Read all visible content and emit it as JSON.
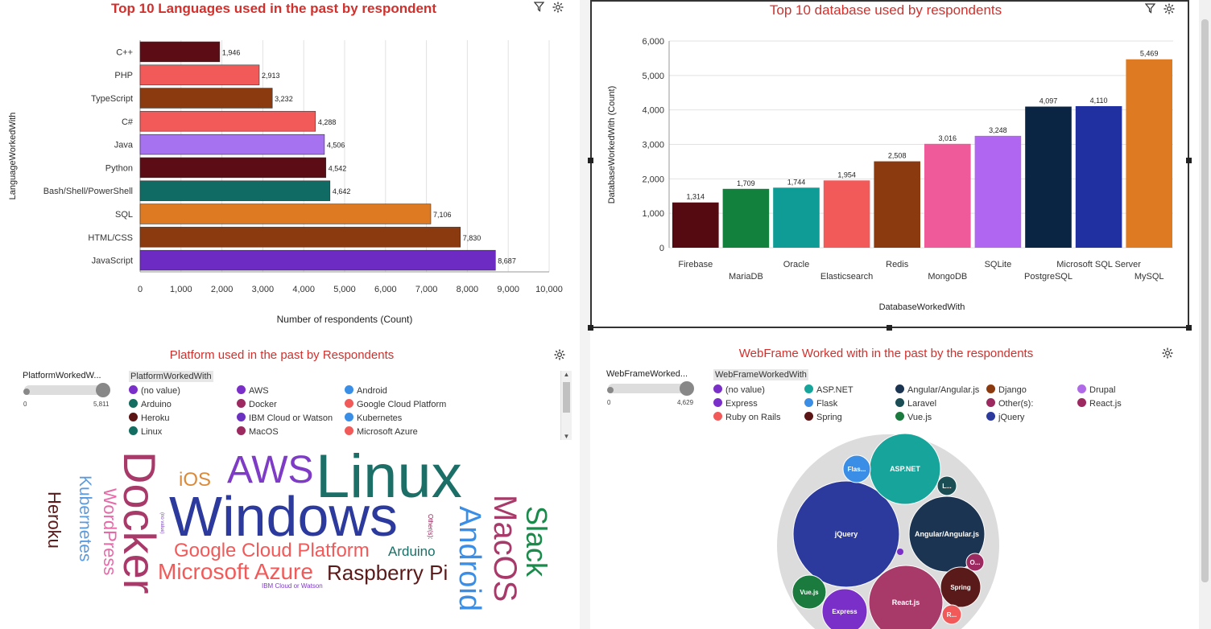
{
  "panels": {
    "languages": {
      "title": "Top 10 Languages used in the past by respondent",
      "icons": [
        "filter-icon",
        "settings-icon"
      ]
    },
    "databases": {
      "title": "Top 10 database used by respondents",
      "icons": [
        "filter-icon",
        "settings-icon"
      ]
    },
    "platform": {
      "title": "Platform used in the past by Respondents",
      "slider_label": "PlatformWorkedW...",
      "slider_min": "0",
      "slider_max": "5,811",
      "legend_title": "PlatformWorkedWith",
      "legend": [
        {
          "label": "(no value)",
          "color": "#7b2fc9"
        },
        {
          "label": "AWS",
          "color": "#7b2fc9"
        },
        {
          "label": "Android",
          "color": "#3a8ee6"
        },
        {
          "label": "Arduino",
          "color": "#136d60"
        },
        {
          "label": "Docker",
          "color": "#9c2a60"
        },
        {
          "label": "Google Cloud Platform",
          "color": "#f25a5a"
        },
        {
          "label": "Heroku",
          "color": "#5b1515"
        },
        {
          "label": "IBM Cloud or Watson",
          "color": "#6b32c2"
        },
        {
          "label": "Kubernetes",
          "color": "#3a8ee6"
        },
        {
          "label": "Linux",
          "color": "#136d60"
        },
        {
          "label": "MacOS",
          "color": "#9c2a60"
        },
        {
          "label": "Microsoft Azure",
          "color": "#f25a5a"
        }
      ],
      "words": [
        {
          "text": "Linux",
          "color": "#1b6f67"
        },
        {
          "text": "Windows",
          "color": "#2c3a9e"
        },
        {
          "text": "AWS",
          "color": "#7e3cc6"
        },
        {
          "text": "Docker",
          "color": "#a83a6a"
        },
        {
          "text": "iOS",
          "color": "#d98a3b"
        },
        {
          "text": "Google Cloud Platform",
          "color": "#f25a5a"
        },
        {
          "text": "Microsoft Azure",
          "color": "#f25a5a"
        },
        {
          "text": "Raspberry Pi",
          "color": "#5a1a1a"
        },
        {
          "text": "Arduino",
          "color": "#1b6f67"
        },
        {
          "text": "Android",
          "color": "#3a8ee6"
        },
        {
          "text": "MacOS",
          "color": "#a83a6a"
        },
        {
          "text": "Slack",
          "color": "#1b8b4b"
        },
        {
          "text": "Heroku",
          "color": "#5a1a1a"
        },
        {
          "text": "Kubernetes",
          "color": "#5a9be0"
        },
        {
          "text": "WordPress",
          "color": "#e76aa8"
        },
        {
          "text": "IBM Cloud or Watson",
          "color": "#7e3cc6"
        },
        {
          "text": "Other(s):",
          "color": "#8b2050"
        },
        {
          "text": "(no value)",
          "color": "#7e3cc6"
        }
      ]
    },
    "webframe": {
      "title": "WebFrame Worked with in the past by the respondents",
      "slider_label": "WebFrameWorked...",
      "slider_min": "0",
      "slider_max": "4,629",
      "legend_title": "WebFrameWorkedWith",
      "legend": [
        {
          "label": "(no value)",
          "color": "#7b2fc9"
        },
        {
          "label": "ASP.NET",
          "color": "#17a49a"
        },
        {
          "label": "Angular/Angular.js",
          "color": "#1b3452"
        },
        {
          "label": "Django",
          "color": "#8b3a10"
        },
        {
          "label": "Drupal",
          "color": "#b06ae8"
        },
        {
          "label": "Express",
          "color": "#7b2fc9"
        },
        {
          "label": "Flask",
          "color": "#3a8ee6"
        },
        {
          "label": "Laravel",
          "color": "#1b4d55"
        },
        {
          "label": "Other(s):",
          "color": "#9c2a60"
        },
        {
          "label": "React.js",
          "color": "#9c2a60"
        },
        {
          "label": "Ruby on Rails",
          "color": "#f25a5a"
        },
        {
          "label": "Spring",
          "color": "#5b1515"
        },
        {
          "label": "Vue.js",
          "color": "#1b7a3e"
        },
        {
          "label": "jQuery",
          "color": "#2c3a9e"
        }
      ],
      "bubbles": [
        {
          "label": "jQuery",
          "color": "#2c3a9e"
        },
        {
          "label": "ASP.NET",
          "color": "#17a49a"
        },
        {
          "label": "Angular/Angular.js",
          "color": "#1b3452"
        },
        {
          "label": "React.js",
          "color": "#a83a6a"
        },
        {
          "label": "Spring",
          "color": "#5b1a1a"
        },
        {
          "label": "Express",
          "color": "#7b2fc9"
        },
        {
          "label": "Vue.js",
          "color": "#1b7a3e"
        },
        {
          "label": "Flas...",
          "color": "#3a8ee6"
        },
        {
          "label": "L...",
          "color": "#1b4d55"
        },
        {
          "label": "O...",
          "color": "#9c2a60"
        },
        {
          "label": "R...",
          "color": "#f25a5a"
        }
      ]
    }
  },
  "chart_data": [
    {
      "type": "bar",
      "orientation": "horizontal",
      "title": "Top 10 Languages used in the past by respondent",
      "xlabel": "Number of respondents (Count)",
      "ylabel": "LanguageWorkedWith",
      "xlim": [
        0,
        10000
      ],
      "xticks": [
        "0",
        "1,000",
        "2,000",
        "3,000",
        "4,000",
        "5,000",
        "6,000",
        "7,000",
        "8,000",
        "9,000",
        "10,000"
      ],
      "categories": [
        "C++",
        "PHP",
        "TypeScript",
        "C#",
        "Java",
        "Python",
        "Bash/Shell/PowerShell",
        "SQL",
        "HTML/CSS",
        "JavaScript"
      ],
      "values": [
        1946,
        2913,
        3232,
        4288,
        4506,
        4542,
        4642,
        7106,
        7830,
        8687
      ],
      "value_labels": [
        "1,946",
        "2,913",
        "3,232",
        "4,288",
        "4,506",
        "4,542",
        "4,642",
        "7,106",
        "7,830",
        "8,687"
      ],
      "colors": [
        "#5b0c14",
        "#f25a5a",
        "#8b3a10",
        "#f25a5a",
        "#a772f0",
        "#5b0c14",
        "#0f6b63",
        "#de7a22",
        "#8b3a10",
        "#6e2bc4"
      ],
      "grid": true
    },
    {
      "type": "bar",
      "orientation": "vertical",
      "title": "Top 10 database used by respondents",
      "xlabel": "DatabaseWorkedWith",
      "ylabel": "DatabaseWorkedWith (Count)",
      "ylim": [
        0,
        6000
      ],
      "yticks": [
        "0",
        "1,000",
        "2,000",
        "3,000",
        "4,000",
        "5,000",
        "6,000"
      ],
      "categories": [
        "Firebase",
        "MariaDB",
        "Oracle",
        "Elasticsearch",
        "Redis",
        "MongoDB",
        "SQLite",
        "PostgreSQL",
        "Microsoft SQL Server",
        "MySQL"
      ],
      "values": [
        1314,
        1709,
        1744,
        1954,
        2508,
        3016,
        3248,
        4097,
        4110,
        5469
      ],
      "value_labels": [
        "1,314",
        "1,709",
        "1,744",
        "1,954",
        "2,508",
        "3,016",
        "3,248",
        "4,097",
        "4,110",
        "5,469"
      ],
      "colors": [
        "#540a10",
        "#13813e",
        "#0f9c96",
        "#f25a5a",
        "#8b3a10",
        "#ef5a9a",
        "#b066f0",
        "#0a2444",
        "#2130a0",
        "#de7a22"
      ],
      "grid": true
    }
  ]
}
